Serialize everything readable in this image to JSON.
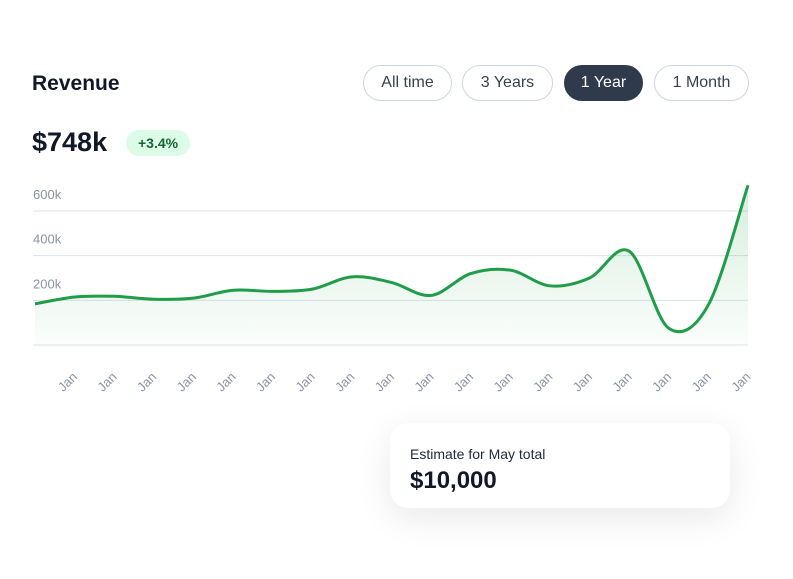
{
  "header": {
    "title": "Revenue",
    "total": "$748k",
    "change": "+3.4%"
  },
  "filters": {
    "options": [
      "All time",
      "3 Years",
      "1 Year",
      "1 Month"
    ],
    "active": 2
  },
  "chart_data": {
    "type": "line",
    "categories": [
      null,
      "Jan",
      "Jan",
      "Jan",
      "Jan",
      "Jan",
      "Jan",
      "Jan",
      "Jan",
      "Jan",
      "Jan",
      "Jan",
      "Jan",
      "Jan",
      "Jan",
      "Jan",
      "Jan",
      "Jan",
      "Jan"
    ],
    "series": [
      {
        "name": "Revenue",
        "color": "#1f9d48",
        "values": [
          184000,
          215000,
          218000,
          205000,
          210000,
          245000,
          240000,
          250000,
          305000,
          280000,
          222000,
          320000,
          335000,
          265000,
          300000,
          420000,
          75000,
          180000,
          715000
        ]
      }
    ],
    "ylim": [
      0,
      800000
    ],
    "yticks": [
      {
        "value": 200000,
        "label": "200k"
      },
      {
        "value": 400000,
        "label": "400k"
      },
      {
        "value": 600000,
        "label": "600k"
      }
    ],
    "grid": true
  },
  "estimate": {
    "label": "Estimate for May total",
    "value": "$10,000"
  }
}
